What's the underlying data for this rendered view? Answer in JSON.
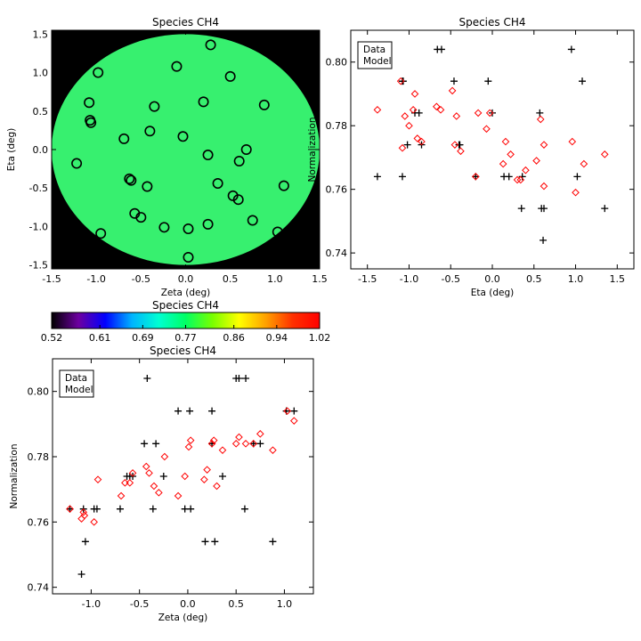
{
  "chart_data": [
    {
      "id": "map",
      "type": "scatter",
      "title": "Species CH4",
      "xlabel": "Zeta (deg)",
      "ylabel": "Eta (deg)",
      "xlim": [
        -1.5,
        1.5
      ],
      "ylim": [
        -1.55,
        1.55
      ],
      "xticks": [
        "-1.5",
        "-1.0",
        "-0.5",
        "0.0",
        "0.5",
        "1.0",
        "1.5"
      ],
      "yticks": [
        "-1.5",
        "-1.0",
        "-0.5",
        "0.0",
        "0.5",
        "1.0",
        "1.5"
      ],
      "background_color": "#000000",
      "field_color": "#37f06f",
      "field_radius_deg": 1.5,
      "marker": "circle",
      "points": [
        [
          0.28,
          1.36
        ],
        [
          -0.1,
          1.08
        ],
        [
          0.5,
          0.95
        ],
        [
          -0.98,
          1.0
        ],
        [
          -1.08,
          0.61
        ],
        [
          -0.35,
          0.56
        ],
        [
          0.2,
          0.62
        ],
        [
          0.88,
          0.58
        ],
        [
          -1.07,
          0.38
        ],
        [
          -1.06,
          0.35
        ],
        [
          -0.4,
          0.24
        ],
        [
          -0.69,
          0.14
        ],
        [
          -0.03,
          0.17
        ],
        [
          0.68,
          0.0
        ],
        [
          0.25,
          -0.07
        ],
        [
          0.6,
          -0.15
        ],
        [
          -1.22,
          -0.18
        ],
        [
          -0.63,
          -0.38
        ],
        [
          -0.61,
          -0.4
        ],
        [
          0.36,
          -0.44
        ],
        [
          -0.43,
          -0.48
        ],
        [
          1.1,
          -0.47
        ],
        [
          0.53,
          -0.6
        ],
        [
          0.59,
          -0.65
        ],
        [
          -0.57,
          -0.83
        ],
        [
          -0.5,
          -0.88
        ],
        [
          0.75,
          -0.92
        ],
        [
          0.25,
          -0.97
        ],
        [
          -0.24,
          -1.01
        ],
        [
          0.03,
          -1.03
        ],
        [
          1.03,
          -1.07
        ],
        [
          -0.95,
          -1.09
        ],
        [
          0.03,
          -1.4
        ]
      ]
    },
    {
      "id": "eta",
      "type": "scatter",
      "title": "Species CH4",
      "xlabel": "Eta (deg)",
      "ylabel": "Normalization",
      "xlim": [
        -1.7,
        1.7
      ],
      "ylim": [
        0.735,
        0.81
      ],
      "xticks": [
        "-1.5",
        "-1.0",
        "-0.5",
        "0.0",
        "0.5",
        "1.0",
        "1.5"
      ],
      "yticks": [
        "0.74",
        "0.76",
        "0.78",
        "0.80"
      ],
      "legend": {
        "position": "top-left",
        "entries": [
          {
            "label": "Data",
            "color": "#000000"
          },
          {
            "label": "Model",
            "color": "#ff0000"
          }
        ]
      },
      "series": [
        {
          "name": "Data",
          "marker": "plus",
          "color": "#000000",
          "points": [
            [
              -1.38,
              0.764
            ],
            [
              -1.08,
              0.794
            ],
            [
              -1.07,
              0.794
            ],
            [
              -1.08,
              0.764
            ],
            [
              -1.02,
              0.774
            ],
            [
              -0.93,
              0.784
            ],
            [
              -0.88,
              0.784
            ],
            [
              -0.85,
              0.774
            ],
            [
              -0.66,
              0.804
            ],
            [
              -0.61,
              0.804
            ],
            [
              -0.46,
              0.794
            ],
            [
              -0.4,
              0.774
            ],
            [
              -0.39,
              0.774
            ],
            [
              -0.2,
              0.764
            ],
            [
              -0.05,
              0.794
            ],
            [
              0.0,
              0.784
            ],
            [
              0.14,
              0.764
            ],
            [
              0.2,
              0.764
            ],
            [
              0.35,
              0.754
            ],
            [
              0.36,
              0.764
            ],
            [
              0.57,
              0.784
            ],
            [
              0.59,
              0.754
            ],
            [
              0.61,
              0.744
            ],
            [
              0.62,
              0.754
            ],
            [
              0.95,
              0.804
            ],
            [
              1.02,
              0.764
            ],
            [
              1.08,
              0.794
            ],
            [
              1.35,
              0.754
            ]
          ]
        },
        {
          "name": "Model",
          "marker": "diamond",
          "color": "#ff0000",
          "points": [
            [
              -1.38,
              0.785
            ],
            [
              -1.1,
              0.794
            ],
            [
              -1.08,
              0.773
            ],
            [
              -1.05,
              0.783
            ],
            [
              -1.0,
              0.78
            ],
            [
              -0.95,
              0.785
            ],
            [
              -0.93,
              0.79
            ],
            [
              -0.9,
              0.776
            ],
            [
              -0.85,
              0.775
            ],
            [
              -0.67,
              0.786
            ],
            [
              -0.62,
              0.785
            ],
            [
              -0.48,
              0.791
            ],
            [
              -0.45,
              0.774
            ],
            [
              -0.43,
              0.783
            ],
            [
              -0.38,
              0.772
            ],
            [
              -0.2,
              0.764
            ],
            [
              -0.17,
              0.784
            ],
            [
              -0.07,
              0.779
            ],
            [
              -0.03,
              0.784
            ],
            [
              0.13,
              0.768
            ],
            [
              0.16,
              0.775
            ],
            [
              0.22,
              0.771
            ],
            [
              0.3,
              0.763
            ],
            [
              0.34,
              0.763
            ],
            [
              0.4,
              0.766
            ],
            [
              0.53,
              0.769
            ],
            [
              0.58,
              0.782
            ],
            [
              0.62,
              0.761
            ],
            [
              0.62,
              0.774
            ],
            [
              0.96,
              0.775
            ],
            [
              1.0,
              0.759
            ],
            [
              1.1,
              0.768
            ],
            [
              1.35,
              0.771
            ]
          ]
        }
      ]
    },
    {
      "id": "zeta",
      "type": "scatter",
      "title": "Species CH4",
      "xlabel": "Zeta (deg)",
      "ylabel": "Normalization",
      "xlim": [
        -1.4,
        1.3
      ],
      "ylim": [
        0.738,
        0.81
      ],
      "xticks": [
        "-1.0",
        "-0.5",
        "0.0",
        "0.5",
        "1.0"
      ],
      "yticks": [
        "0.74",
        "0.76",
        "0.78",
        "0.80"
      ],
      "legend": {
        "position": "top-left",
        "entries": [
          {
            "label": "Data",
            "color": "#000000"
          },
          {
            "label": "Model",
            "color": "#ff0000"
          }
        ]
      },
      "series": [
        {
          "name": "Data",
          "marker": "plus",
          "color": "#000000",
          "points": [
            [
              -1.22,
              0.764
            ],
            [
              -1.1,
              0.744
            ],
            [
              -1.08,
              0.764
            ],
            [
              -1.06,
              0.754
            ],
            [
              -0.97,
              0.764
            ],
            [
              -0.94,
              0.764
            ],
            [
              -0.7,
              0.764
            ],
            [
              -0.63,
              0.774
            ],
            [
              -0.6,
              0.774
            ],
            [
              -0.57,
              0.774
            ],
            [
              -0.45,
              0.784
            ],
            [
              -0.42,
              0.804
            ],
            [
              -0.36,
              0.764
            ],
            [
              -0.33,
              0.784
            ],
            [
              -0.25,
              0.774
            ],
            [
              -0.1,
              0.794
            ],
            [
              -0.03,
              0.764
            ],
            [
              0.02,
              0.794
            ],
            [
              0.03,
              0.764
            ],
            [
              0.18,
              0.754
            ],
            [
              0.25,
              0.784
            ],
            [
              0.25,
              0.794
            ],
            [
              0.28,
              0.754
            ],
            [
              0.36,
              0.774
            ],
            [
              0.5,
              0.804
            ],
            [
              0.53,
              0.804
            ],
            [
              0.59,
              0.764
            ],
            [
              0.6,
              0.804
            ],
            [
              0.68,
              0.784
            ],
            [
              0.75,
              0.784
            ],
            [
              0.88,
              0.754
            ],
            [
              1.02,
              0.794
            ],
            [
              1.1,
              0.794
            ]
          ]
        },
        {
          "name": "Model",
          "marker": "diamond",
          "color": "#ff0000",
          "points": [
            [
              -1.22,
              0.764
            ],
            [
              -1.1,
              0.761
            ],
            [
              -1.08,
              0.763
            ],
            [
              -1.07,
              0.762
            ],
            [
              -0.97,
              0.76
            ],
            [
              -0.93,
              0.773
            ],
            [
              -0.69,
              0.768
            ],
            [
              -0.65,
              0.772
            ],
            [
              -0.6,
              0.772
            ],
            [
              -0.57,
              0.775
            ],
            [
              -0.43,
              0.777
            ],
            [
              -0.4,
              0.775
            ],
            [
              -0.35,
              0.771
            ],
            [
              -0.3,
              0.769
            ],
            [
              -0.24,
              0.78
            ],
            [
              -0.1,
              0.768
            ],
            [
              -0.03,
              0.774
            ],
            [
              0.01,
              0.783
            ],
            [
              0.03,
              0.785
            ],
            [
              0.17,
              0.773
            ],
            [
              0.2,
              0.776
            ],
            [
              0.25,
              0.784
            ],
            [
              0.27,
              0.785
            ],
            [
              0.3,
              0.771
            ],
            [
              0.36,
              0.782
            ],
            [
              0.5,
              0.784
            ],
            [
              0.53,
              0.786
            ],
            [
              0.6,
              0.784
            ],
            [
              0.68,
              0.784
            ],
            [
              0.75,
              0.787
            ],
            [
              0.88,
              0.782
            ],
            [
              1.03,
              0.794
            ],
            [
              1.1,
              0.791
            ]
          ]
        }
      ]
    }
  ],
  "colorbar": {
    "title": "Species CH4",
    "min": 0.52,
    "max": 1.02,
    "tick_labels": [
      "0.52",
      "0.61",
      "0.69",
      "0.77",
      "0.86",
      "0.94",
      "1.02"
    ],
    "colors": [
      "#000000",
      "#6d00a0",
      "#0000ff",
      "#00b4ff",
      "#00ffd2",
      "#00ff64",
      "#78ff00",
      "#ffff00",
      "#ffa000",
      "#ff3000",
      "#ff0000"
    ]
  }
}
